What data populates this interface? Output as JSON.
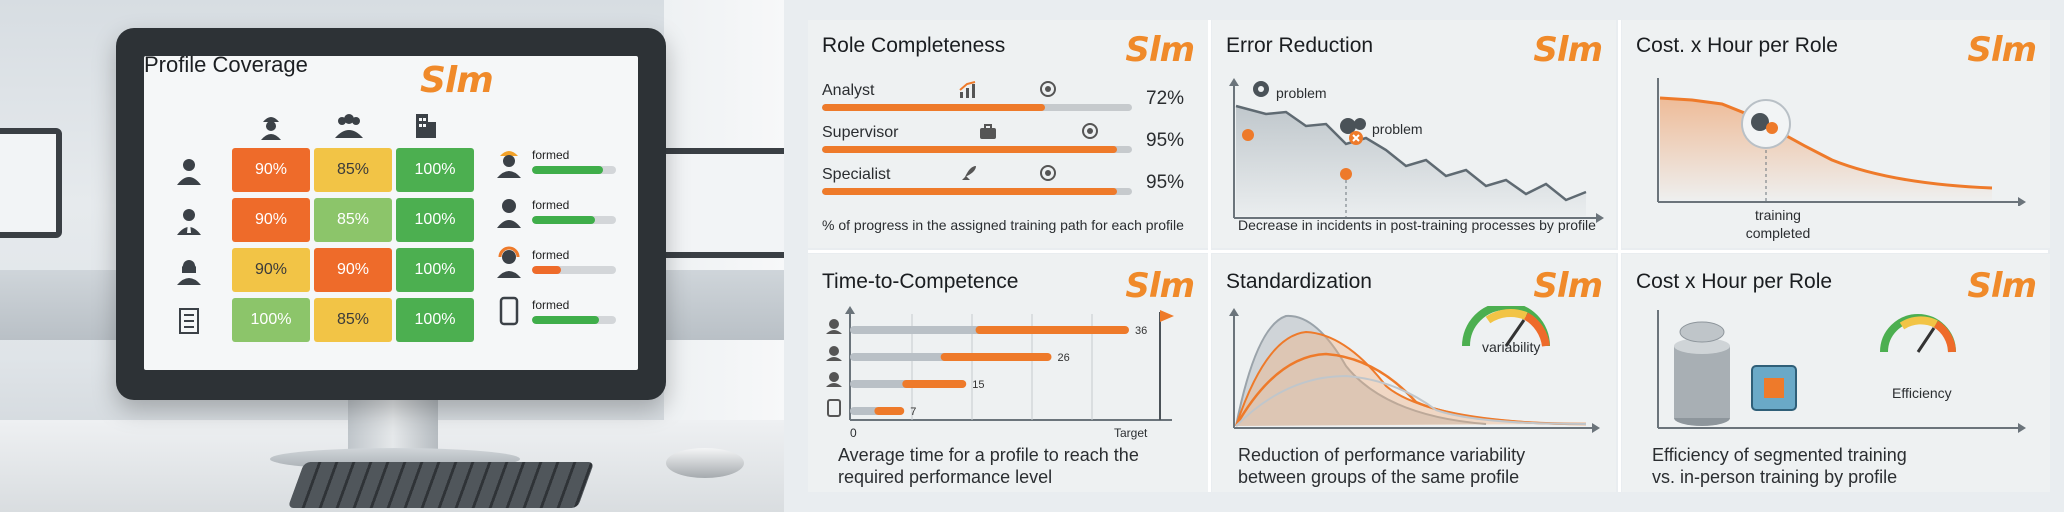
{
  "monitor": {
    "title": "Profile Coverage",
    "brand": "Slm",
    "heatmap": {
      "header_icons": [
        "worker-icon",
        "group-icon",
        "building-icon"
      ],
      "rows": [
        {
          "icon": "person-icon",
          "cells": [
            {
              "value": "90%",
              "color": "#ee6b2a"
            },
            {
              "value": "85%",
              "color": "#f2c446"
            },
            {
              "value": "100%",
              "color": "#4caf50"
            }
          ]
        },
        {
          "icon": "businessman-icon",
          "cells": [
            {
              "value": "90%",
              "color": "#ee6b2a"
            },
            {
              "value": "85%",
              "color": "#8cc56a"
            },
            {
              "value": "100%",
              "color": "#4caf50"
            }
          ]
        },
        {
          "icon": "woman-icon",
          "cells": [
            {
              "value": "90%",
              "color": "#f2c446"
            },
            {
              "value": "90%",
              "color": "#ee6b2a"
            },
            {
              "value": "100%",
              "color": "#4caf50"
            }
          ]
        },
        {
          "icon": "document-icon",
          "cells": [
            {
              "value": "100%",
              "color": "#8cc56a"
            },
            {
              "value": "85%",
              "color": "#f2c446"
            },
            {
              "value": "100%",
              "color": "#4caf50"
            }
          ]
        }
      ]
    },
    "status": [
      {
        "icon": "hardhat-worker-icon",
        "label": "formed",
        "progress": 0.85,
        "color": "#3fae4a"
      },
      {
        "icon": "manager-icon",
        "label": "formed",
        "progress": 0.75,
        "color": "#3fae4a"
      },
      {
        "icon": "headset-operator-icon",
        "label": "formed",
        "progress": 0.35,
        "color": "#ee6b2a"
      },
      {
        "icon": "tablet-icon",
        "label": "formed",
        "progress": 0.8,
        "color": "#3fae4a"
      }
    ]
  },
  "panels": {
    "role_completeness": {
      "title": "Role Completeness",
      "brand": "Slm",
      "rows": [
        {
          "label": "Analyst",
          "value": "72%",
          "progress": 0.72
        },
        {
          "label": "Supervisor",
          "value": "95%",
          "progress": 0.95
        },
        {
          "label": "Specialist",
          "value": "95%",
          "progress": 0.95
        }
      ],
      "caption": "% of progress in the assigned training path for each profile"
    },
    "error_reduction": {
      "title": "Error Reduction",
      "brand": "Slm",
      "annotations": [
        "problem",
        "problem"
      ],
      "caption": "Decrease in incidents in post-training processes by profile"
    },
    "cost_hour_1": {
      "title": "Cost. x Hour per Role",
      "brand": "Slm",
      "annotation": "training\ncompleted",
      "annotation_lines": [
        "training",
        "completed"
      ],
      "caption": ""
    },
    "time_to_competence": {
      "title": "Time-to-Competence",
      "brand": "Slm",
      "x_start": "0",
      "x_target": "Target",
      "chart_data": {
        "type": "bar",
        "categories": [
          "person-1",
          "person-2",
          "operator",
          "tablet"
        ],
        "values": [
          36,
          26,
          15,
          7
        ],
        "xlim": [
          0,
          40
        ]
      },
      "caption_lines": [
        "Average time for a profile to reach the",
        "required performance level"
      ]
    },
    "standardization": {
      "title": "Standardization",
      "brand": "Slm",
      "gauge_label": "variability",
      "caption_lines": [
        "Reduction of performance variability",
        "between groups of the same profile"
      ]
    },
    "cost_hour_2": {
      "title": "Cost x Hour per Role",
      "brand": "Slm",
      "gauge_label": "Efficiency",
      "caption_lines": [
        "Efficiency of segmented training",
        "vs. in-person training by profile"
      ]
    }
  }
}
